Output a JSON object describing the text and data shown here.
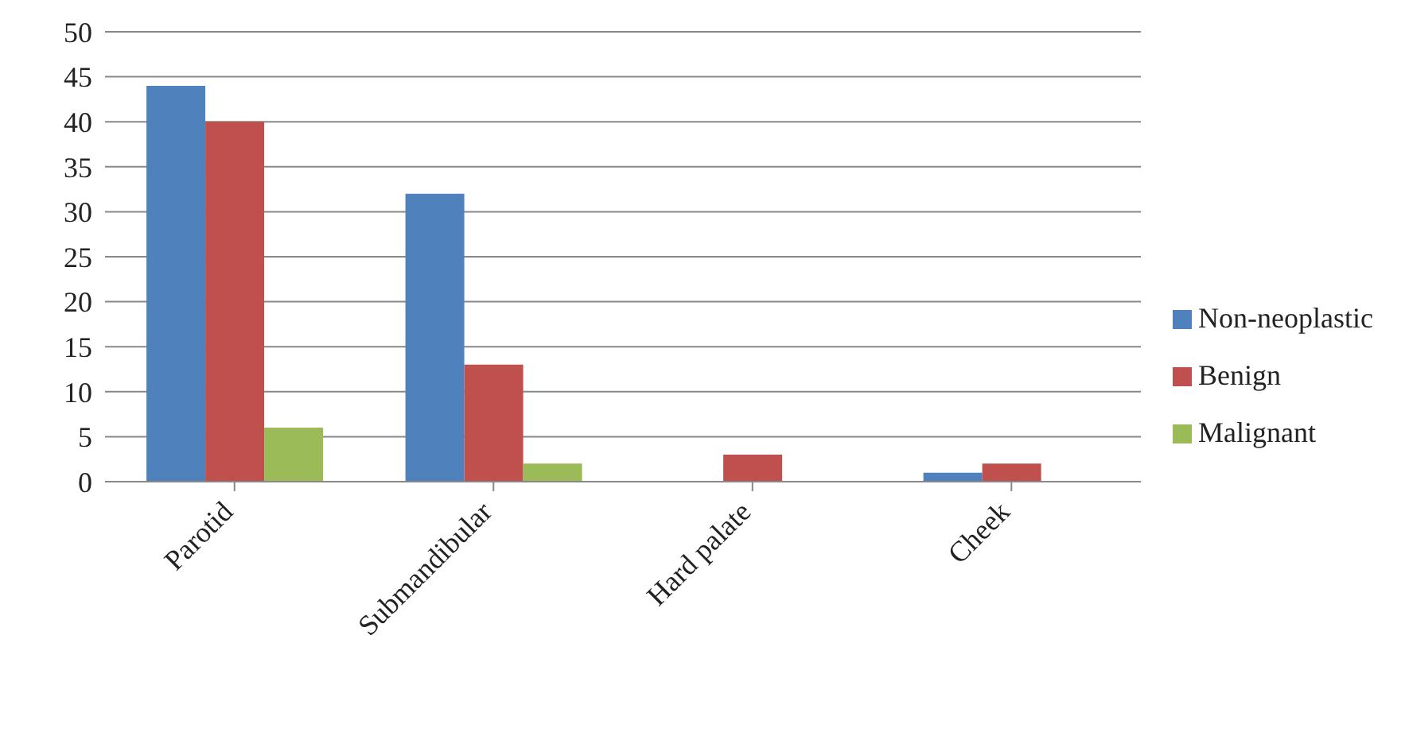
{
  "chart_data": {
    "type": "bar",
    "categories": [
      "Parotid",
      "Submandibular",
      "Hard palate",
      "Cheek"
    ],
    "series": [
      {
        "name": "Non-neoplastic",
        "color": "#4f81bd",
        "values": [
          44,
          32,
          0,
          1
        ]
      },
      {
        "name": "Benign",
        "color": "#c0504d",
        "values": [
          40,
          13,
          3,
          2
        ]
      },
      {
        "name": "Malignant",
        "color": "#9bbb59",
        "values": [
          6,
          2,
          0,
          0
        ]
      }
    ],
    "ylim": [
      0,
      50
    ],
    "yticks": [
      0,
      5,
      10,
      15,
      20,
      25,
      30,
      35,
      40,
      45,
      50
    ],
    "grid": "y",
    "legend": "right"
  }
}
